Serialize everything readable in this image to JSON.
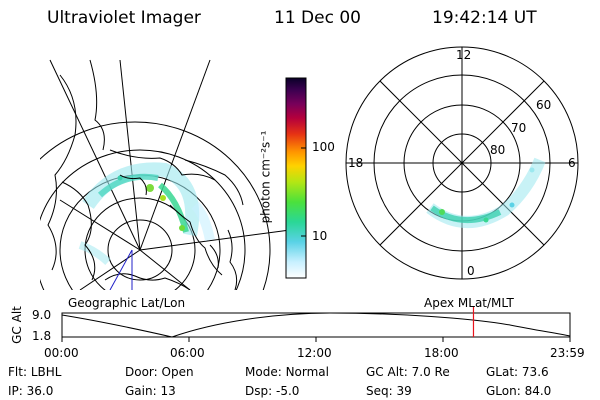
{
  "header": {
    "instrument": "Ultraviolet Imager",
    "date": "11 Dec 00",
    "time": "19:42:14 UT"
  },
  "colorbar": {
    "unit_label": "photon cm⁻²s⁻¹",
    "ticks": [
      "100",
      "10"
    ]
  },
  "polar_plot": {
    "mlt_labels": [
      "12",
      "18",
      "6",
      "0"
    ],
    "lat_labels": [
      "60",
      "70",
      "80"
    ]
  },
  "panel_labels": {
    "left": "Geographic Lat/Lon",
    "right": "Apex MLat/MLT"
  },
  "altitude_plot": {
    "ylabel": "GC Alt",
    "yticks": [
      "9.0",
      "1.8"
    ],
    "xticks": [
      "00:00",
      "06:00",
      "12:00",
      "18:00",
      "23:59"
    ],
    "current_time_fraction": 0.81
  },
  "info": {
    "row1": [
      {
        "label": "Flt:",
        "value": "LBHL"
      },
      {
        "label": "Door:",
        "value": "Open"
      },
      {
        "label": "Mode:",
        "value": "Normal"
      },
      {
        "label": "GC Alt:",
        "value": "7.0 Re"
      },
      {
        "label": "GLat:",
        "value": "73.6"
      }
    ],
    "row2": [
      {
        "label": "IP:",
        "value": "36.0"
      },
      {
        "label": "Gain:",
        "value": "13"
      },
      {
        "label": "Dsp:",
        "value": "-5.0"
      },
      {
        "label": "Seq:",
        "value": "39"
      },
      {
        "label": "GLon:",
        "value": "84.0"
      }
    ]
  },
  "colors": {
    "marker": "#e8141c",
    "line": "#000000"
  }
}
